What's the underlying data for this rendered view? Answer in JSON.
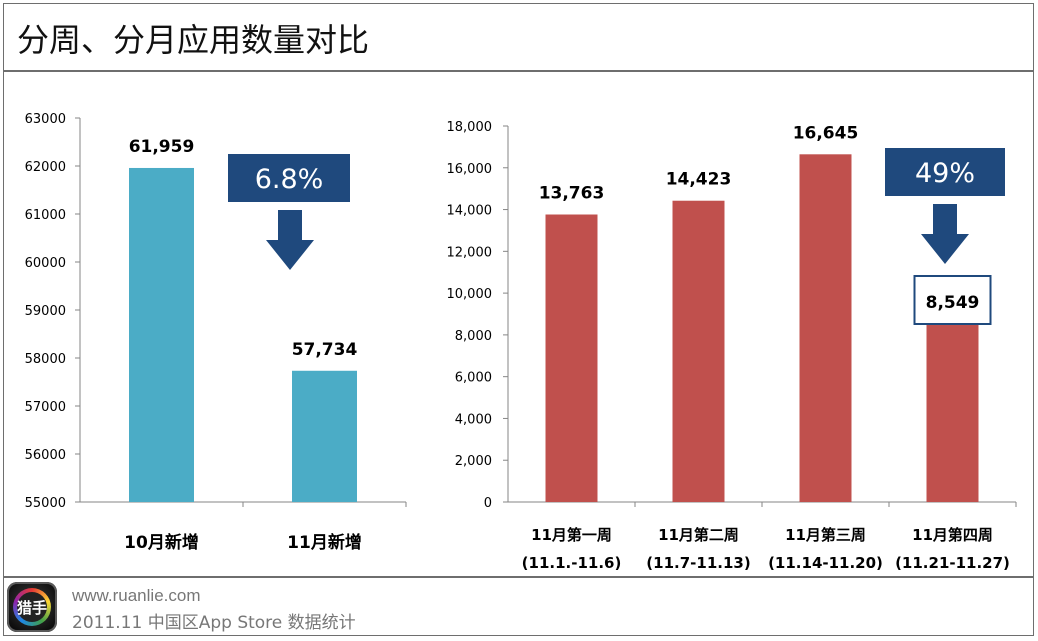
{
  "title": "分周、分月应用数量对比",
  "footer": {
    "url": "www.ruanlie.com",
    "caption": "2011.11 中国区App Store 数据统计",
    "logo_text": "猎手"
  },
  "colors": {
    "left_bar": "#4bacc6",
    "right_bar": "#c0504d",
    "callout": "#1f497d"
  },
  "chart_data": [
    {
      "type": "bar",
      "categories": [
        "10月新增",
        "11月新增"
      ],
      "values": [
        61959,
        57734
      ],
      "data_labels": [
        "61,959",
        "57,734"
      ],
      "yticks": [
        "55000",
        "56000",
        "57000",
        "58000",
        "59000",
        "60000",
        "61000",
        "62000",
        "63000"
      ],
      "ylim": [
        55000,
        63000
      ],
      "callout": "6.8%",
      "grid": false
    },
    {
      "type": "bar",
      "categories": [
        {
          "line1": "11月第一周",
          "line2": "(11.1.-11.6)"
        },
        {
          "line1": "11月第二周",
          "line2": "(11.7-11.13)"
        },
        {
          "line1": "11月第三周",
          "line2": "(11.14-11.20)"
        },
        {
          "line1": "11月第四周",
          "line2": "(11.21-11.27)"
        }
      ],
      "values": [
        13763,
        14423,
        16645,
        8549
      ],
      "data_labels": [
        "13,763",
        "14,423",
        "16,645",
        "8,549"
      ],
      "yticks": [
        "0",
        "2,000",
        "4,000",
        "6,000",
        "8,000",
        "10,000",
        "12,000",
        "14,000",
        "16,000",
        "18,000"
      ],
      "ylim": [
        0,
        18000
      ],
      "callout": "49%",
      "grid": false
    }
  ]
}
